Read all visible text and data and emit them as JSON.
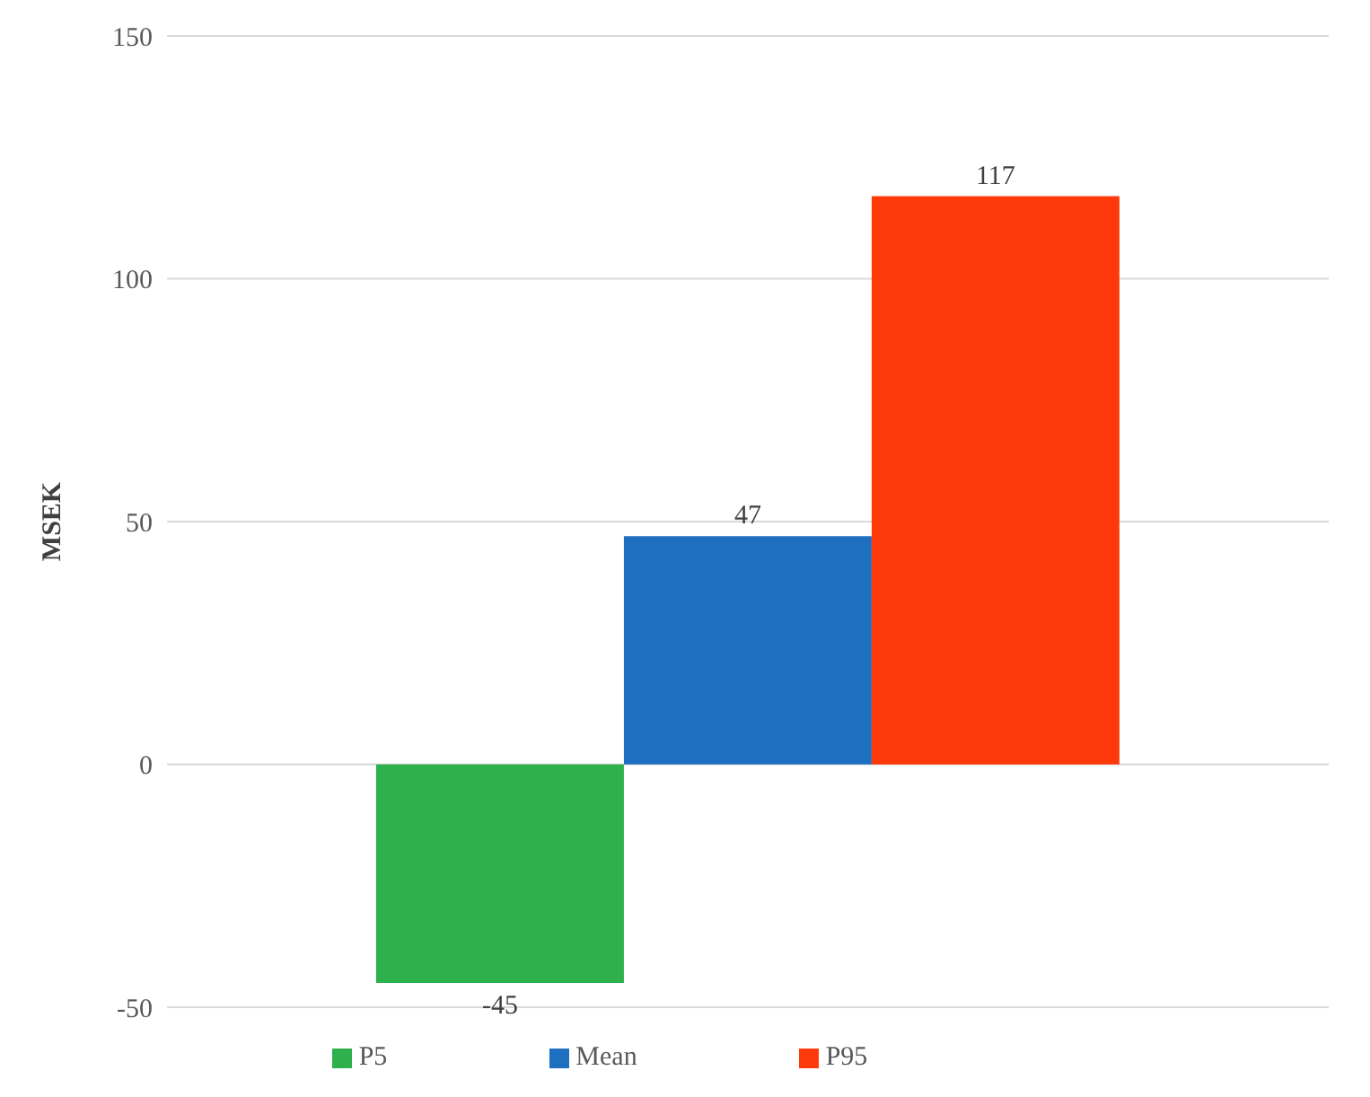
{
  "chart_data": {
    "type": "bar",
    "ylabel": "MSEK",
    "categories": [
      null
    ],
    "series": [
      {
        "name": "P5",
        "color": "#2eb04c",
        "values": [
          -45
        ]
      },
      {
        "name": "Mean",
        "color": "#1f6fc0",
        "values": [
          47
        ]
      },
      {
        "name": "P95",
        "color": "#ff3a0a",
        "values": [
          117
        ]
      }
    ],
    "ylim": [
      -50,
      150
    ],
    "yticks": [
      -50,
      0,
      50,
      100,
      150
    ],
    "grid": "y",
    "legend": "bottom",
    "data_labels": true
  }
}
